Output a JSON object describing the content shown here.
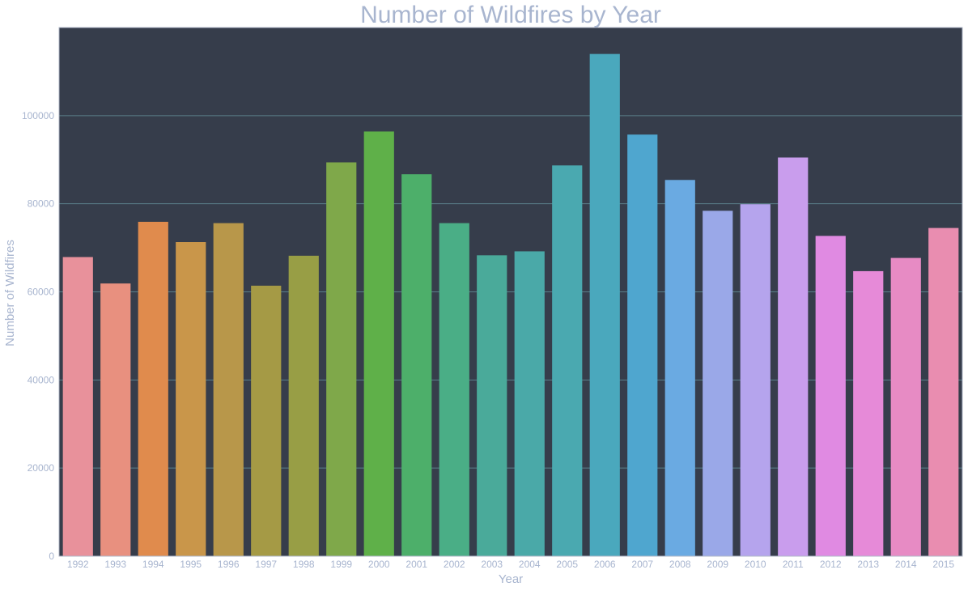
{
  "chart_data": {
    "type": "bar",
    "title": "Number of Wildfires by Year",
    "xlabel": "Year",
    "ylabel": "Number of Wildfires",
    "categories": [
      "1992",
      "1993",
      "1994",
      "1995",
      "1996",
      "1997",
      "1998",
      "1999",
      "2000",
      "2001",
      "2002",
      "2003",
      "2004",
      "2005",
      "2006",
      "2007",
      "2008",
      "2009",
      "2010",
      "2011",
      "2012",
      "2013",
      "2014",
      "2015"
    ],
    "values": [
      67900,
      61900,
      75900,
      71300,
      75600,
      61400,
      68200,
      89400,
      96400,
      86700,
      75600,
      68300,
      69200,
      88700,
      114000,
      95700,
      85400,
      78400,
      79900,
      90500,
      72700,
      64700,
      67700,
      74500
    ],
    "ylim": [
      0,
      120000
    ],
    "yticks": [
      0,
      20000,
      40000,
      60000,
      80000,
      100000
    ],
    "grid": true,
    "legend": "none",
    "colors": {
      "plot_background": "#363d4b",
      "grid": "#5a7f8a",
      "axis_frame": "#b0b8c8",
      "text": "#a8b5cf"
    },
    "bar_colors": [
      "#e8919b",
      "#e8907f",
      "#e08b4d",
      "#c9964a",
      "#b8974a",
      "#a59a45",
      "#989e45",
      "#7fa84a",
      "#5fb049",
      "#4daf6a",
      "#4aae86",
      "#4aaa9a",
      "#4aa9a8",
      "#4aa9b0",
      "#4aa8bd",
      "#4fa6cf",
      "#6aaae2",
      "#9aa8e8",
      "#b5a4ed",
      "#c99ded",
      "#e08ae2",
      "#e68ad8",
      "#e78bc4",
      "#e98db0"
    ]
  }
}
